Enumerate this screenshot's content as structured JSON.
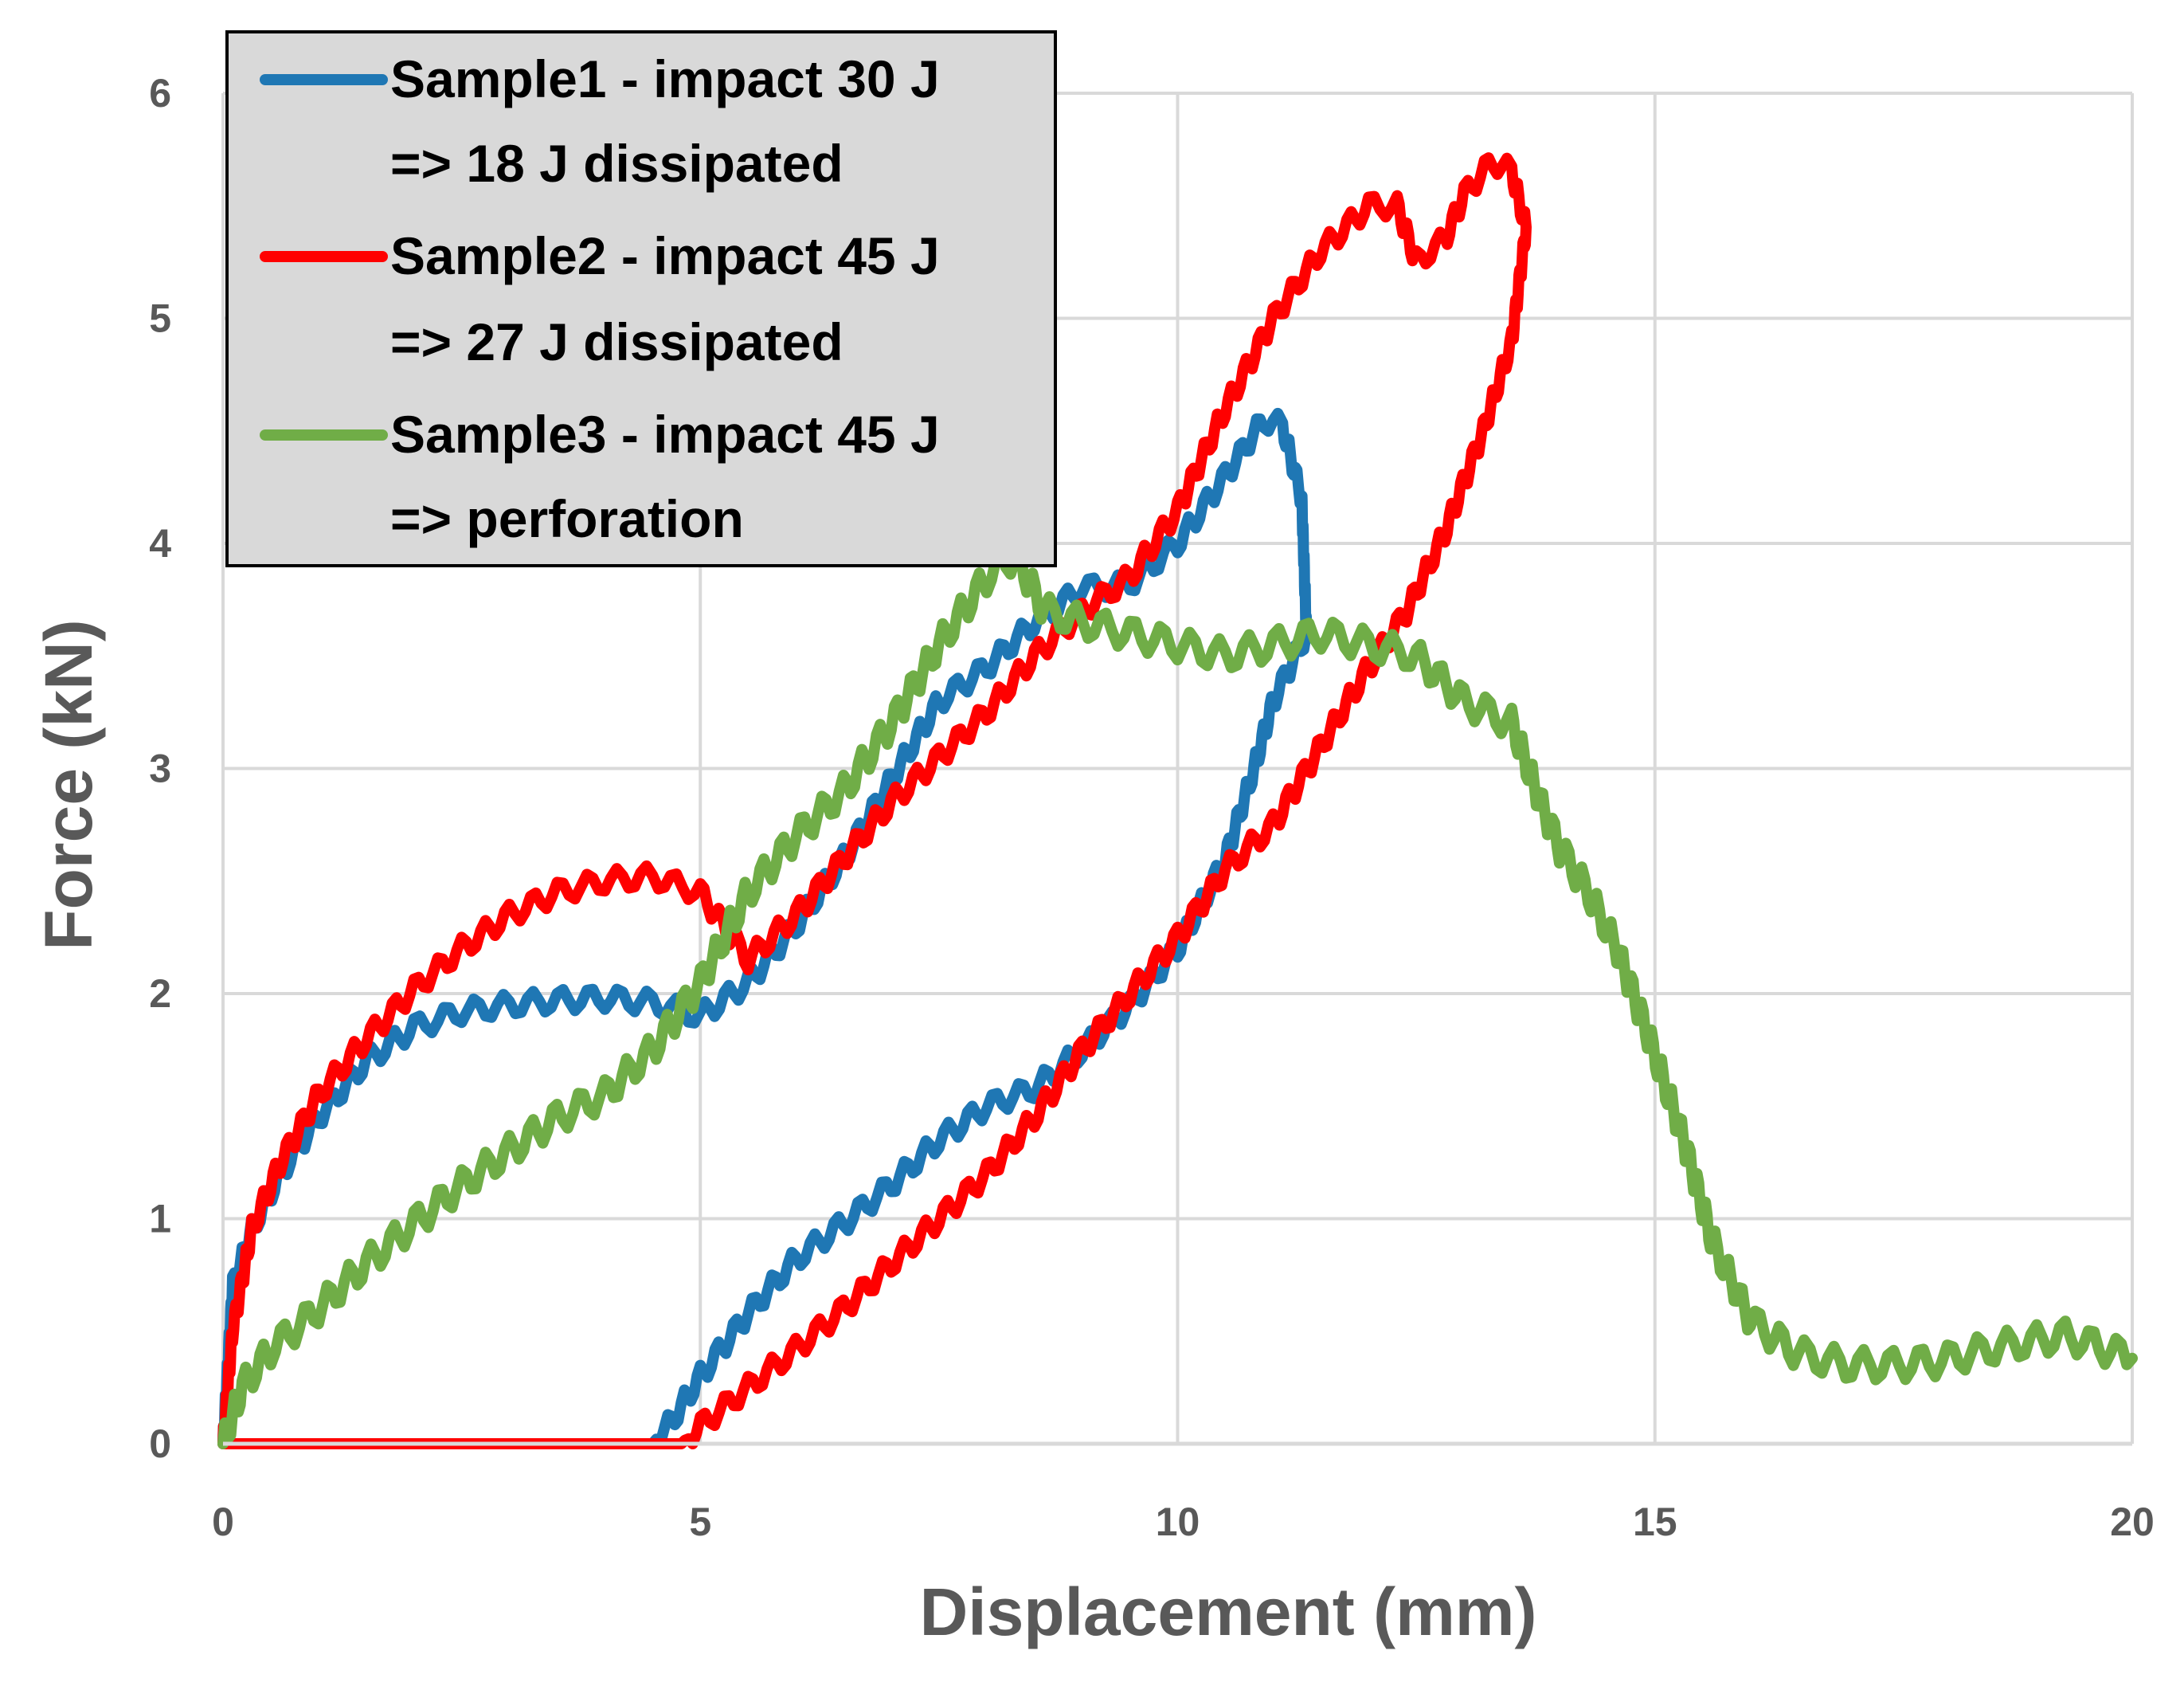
{
  "chart_data": {
    "type": "line",
    "title": "",
    "xlabel": "Displacement (mm)",
    "ylabel": "Force (kN)",
    "xlim": [
      0,
      20
    ],
    "ylim": [
      0,
      6
    ],
    "x_ticks": [
      "0",
      "5",
      "10",
      "15",
      "20"
    ],
    "y_ticks": [
      "0",
      "1",
      "2",
      "3",
      "4",
      "5",
      "6"
    ],
    "grid": true,
    "legend_position": "top-left",
    "series": [
      {
        "name": "Sample1 - impact 30 J",
        "name_line2": "=> 18 J dissipated",
        "color": "#1f77b4",
        "points": [
          [
            0,
            0
          ],
          [
            0.1,
            0.7
          ],
          [
            0.3,
            0.95
          ],
          [
            0.6,
            1.2
          ],
          [
            1.0,
            1.45
          ],
          [
            1.5,
            1.7
          ],
          [
            2.0,
            1.85
          ],
          [
            2.5,
            1.92
          ],
          [
            3.0,
            1.95
          ],
          [
            3.5,
            1.97
          ],
          [
            4.0,
            1.98
          ],
          [
            4.5,
            1.96
          ],
          [
            5.0,
            1.9
          ],
          [
            5.5,
            2.05
          ],
          [
            6.0,
            2.3
          ],
          [
            6.5,
            2.6
          ],
          [
            7.0,
            2.95
          ],
          [
            7.5,
            3.3
          ],
          [
            8.0,
            3.45
          ],
          [
            8.5,
            3.65
          ],
          [
            9.0,
            3.8
          ],
          [
            9.5,
            3.82
          ],
          [
            10.0,
            4.0
          ],
          [
            10.5,
            4.3
          ],
          [
            10.9,
            4.55
          ],
          [
            11.1,
            4.52
          ],
          [
            11.3,
            4.2
          ],
          [
            11.35,
            3.6
          ],
          [
            11.0,
            3.3
          ],
          [
            10.8,
            3.0
          ],
          [
            10.5,
            2.6
          ],
          [
            10.0,
            2.2
          ],
          [
            9.5,
            1.95
          ],
          [
            9.0,
            1.75
          ],
          [
            8.5,
            1.58
          ],
          [
            8.0,
            1.5
          ],
          [
            7.5,
            1.35
          ],
          [
            7.0,
            1.15
          ],
          [
            6.5,
            0.98
          ],
          [
            6.0,
            0.82
          ],
          [
            5.5,
            0.58
          ],
          [
            5.0,
            0.3
          ],
          [
            4.7,
            0.1
          ],
          [
            4.5,
            0
          ],
          [
            0,
            0
          ]
        ],
        "noise": 0.05
      },
      {
        "name": "Sample2 - impact 45 J",
        "name_line2": "=> 27 J dissipated",
        "color": "#ff0000",
        "points": [
          [
            0,
            0
          ],
          [
            0.1,
            0.5
          ],
          [
            0.3,
            0.95
          ],
          [
            0.6,
            1.25
          ],
          [
            1.0,
            1.55
          ],
          [
            1.5,
            1.8
          ],
          [
            2.0,
            2.02
          ],
          [
            2.5,
            2.2
          ],
          [
            3.0,
            2.35
          ],
          [
            3.5,
            2.45
          ],
          [
            4.0,
            2.5
          ],
          [
            4.5,
            2.52
          ],
          [
            5.0,
            2.45
          ],
          [
            5.5,
            2.15
          ],
          [
            6.0,
            2.35
          ],
          [
            6.5,
            2.6
          ],
          [
            7.0,
            2.85
          ],
          [
            7.5,
            3.05
          ],
          [
            8.0,
            3.25
          ],
          [
            8.5,
            3.5
          ],
          [
            9.0,
            3.7
          ],
          [
            9.5,
            3.85
          ],
          [
            10.0,
            4.15
          ],
          [
            10.5,
            4.6
          ],
          [
            11.0,
            5.0
          ],
          [
            11.5,
            5.3
          ],
          [
            12.0,
            5.5
          ],
          [
            12.3,
            5.5
          ],
          [
            12.5,
            5.25
          ],
          [
            12.8,
            5.35
          ],
          [
            13.0,
            5.55
          ],
          [
            13.3,
            5.7
          ],
          [
            13.5,
            5.65
          ],
          [
            13.65,
            5.4
          ],
          [
            13.5,
            4.9
          ],
          [
            13.2,
            4.5
          ],
          [
            12.8,
            4.05
          ],
          [
            12.4,
            3.7
          ],
          [
            12.0,
            3.45
          ],
          [
            11.5,
            3.1
          ],
          [
            11.0,
            2.75
          ],
          [
            10.5,
            2.55
          ],
          [
            10.0,
            2.25
          ],
          [
            9.5,
            2.0
          ],
          [
            9.0,
            1.75
          ],
          [
            8.5,
            1.45
          ],
          [
            8.0,
            1.2
          ],
          [
            7.5,
            1.0
          ],
          [
            7.0,
            0.8
          ],
          [
            6.5,
            0.6
          ],
          [
            6.0,
            0.42
          ],
          [
            5.5,
            0.25
          ],
          [
            5.0,
            0.08
          ],
          [
            4.8,
            0
          ],
          [
            0,
            0
          ]
        ],
        "noise": 0.05
      },
      {
        "name": "Sample3 - impact 45 J",
        "name_line2": "=> perforation",
        "color": "#70ad47",
        "points": [
          [
            0,
            0
          ],
          [
            0.2,
            0.25
          ],
          [
            0.5,
            0.42
          ],
          [
            1.0,
            0.6
          ],
          [
            1.5,
            0.8
          ],
          [
            2.0,
            0.98
          ],
          [
            2.5,
            1.15
          ],
          [
            3.0,
            1.3
          ],
          [
            3.5,
            1.45
          ],
          [
            4.0,
            1.55
          ],
          [
            4.5,
            1.75
          ],
          [
            5.0,
            2.05
          ],
          [
            5.5,
            2.45
          ],
          [
            6.0,
            2.7
          ],
          [
            6.5,
            2.9
          ],
          [
            7.0,
            3.2
          ],
          [
            7.5,
            3.55
          ],
          [
            8.0,
            3.85
          ],
          [
            8.3,
            3.95
          ],
          [
            8.6,
            3.7
          ],
          [
            9.0,
            3.65
          ],
          [
            9.5,
            3.6
          ],
          [
            10.0,
            3.55
          ],
          [
            10.5,
            3.5
          ],
          [
            11.0,
            3.55
          ],
          [
            11.5,
            3.6
          ],
          [
            12.0,
            3.55
          ],
          [
            12.5,
            3.5
          ],
          [
            13.0,
            3.3
          ],
          [
            13.5,
            3.2
          ],
          [
            13.8,
            2.85
          ],
          [
            14.0,
            2.65
          ],
          [
            14.3,
            2.45
          ],
          [
            14.6,
            2.2
          ],
          [
            14.9,
            1.85
          ],
          [
            15.3,
            1.35
          ],
          [
            15.6,
            0.9
          ],
          [
            16.0,
            0.55
          ],
          [
            16.5,
            0.4
          ],
          [
            17.0,
            0.35
          ],
          [
            17.5,
            0.35
          ],
          [
            18.0,
            0.37
          ],
          [
            18.5,
            0.42
          ],
          [
            19.0,
            0.46
          ],
          [
            19.3,
            0.48
          ],
          [
            19.6,
            0.44
          ],
          [
            20.0,
            0.38
          ]
        ],
        "noise": 0.07
      }
    ]
  }
}
